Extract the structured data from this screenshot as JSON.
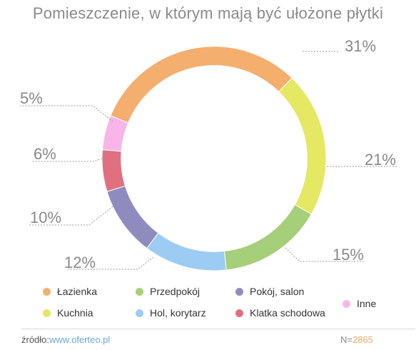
{
  "chart_data": {
    "type": "pie",
    "title": "Pomieszczenie, w którym mają być ułożone płytki",
    "categories": [
      "Łazienka",
      "Kuchnia",
      "Przedpokój",
      "Hol, korytarz",
      "Pokój, salon",
      "Klatka schodowa",
      "Inne"
    ],
    "values": [
      31,
      21,
      15,
      12,
      10,
      6,
      5
    ],
    "labels": [
      "31%",
      "21%",
      "15%",
      "12%",
      "10%",
      "6%",
      "5%"
    ],
    "colors": [
      "#f4ae6e",
      "#e4e862",
      "#a5cf79",
      "#9ccbf3",
      "#8e8cbf",
      "#e0707f",
      "#f8b6e8"
    ],
    "hole": 0.83,
    "legend_position": "bottom"
  },
  "legend_order": [
    "Łazienka",
    "Przedpokój",
    "Pokój, salon",
    "Inne",
    "Kuchnia",
    "Hol, korytarz",
    "Klatka schodowa"
  ],
  "footer": {
    "source_label": "źródło:",
    "source_link": "www.oferteo.pl",
    "sample_label": "N=",
    "sample_value": "2865"
  }
}
